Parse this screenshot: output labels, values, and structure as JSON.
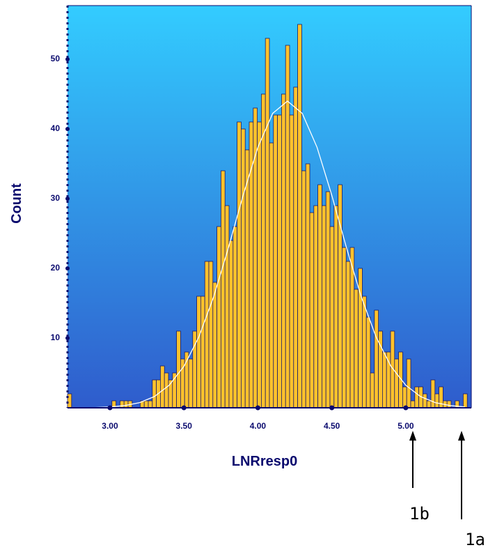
{
  "chart_data": {
    "type": "histogram",
    "x_label": "LNRresp0",
    "y_label": "Count",
    "color": "#ffc22c",
    "bins": [
      2.713,
      2.7403,
      2.7676,
      2.7949,
      2.8222,
      2.8495,
      2.8768,
      2.9041,
      2.9314,
      2.9587,
      2.986,
      3.0133,
      3.0406,
      3.0679,
      3.0952,
      3.1225,
      3.1498,
      3.1771,
      3.2044,
      3.2317,
      3.259,
      3.2863,
      3.3136,
      3.3409,
      3.3682,
      3.3955,
      3.4228,
      3.4501,
      3.4774,
      3.5047,
      3.532,
      3.5593,
      3.5866,
      3.6139,
      3.6412,
      3.6685,
      3.6958,
      3.7231,
      3.7504,
      3.7777,
      3.805,
      3.8323,
      3.8596,
      3.8869,
      3.9142,
      3.9415,
      3.9688,
      3.9961,
      4.0234,
      4.0507,
      4.078,
      4.1053,
      4.1326,
      4.1599,
      4.1872,
      4.2145,
      4.2418,
      4.2691,
      4.2964,
      4.3237,
      4.351,
      4.3783,
      4.4056,
      4.4329,
      4.4602,
      4.4875,
      4.5148,
      4.5421,
      4.5694,
      4.5967,
      4.624,
      4.6513,
      4.6786,
      4.7059,
      4.7332,
      4.7605,
      4.7878,
      4.8151,
      4.8424,
      4.8697,
      4.897,
      4.9243,
      4.9516,
      4.9789,
      5.0062,
      5.0335,
      5.0608,
      5.0881,
      5.1154,
      5.1427,
      5.17,
      5.1973,
      5.2246,
      5.2519,
      5.2792,
      5.3065,
      5.3338,
      5.3611,
      5.3884,
      5.4157,
      5.443
    ],
    "values": [
      2,
      0,
      0,
      0,
      0,
      0,
      0,
      0,
      0,
      0,
      0,
      1,
      0,
      1,
      1,
      1,
      0,
      0,
      1,
      1,
      1,
      4,
      4,
      6,
      5,
      4,
      5,
      11,
      7,
      8,
      7,
      11,
      16,
      16,
      21,
      21,
      18,
      26,
      34,
      29,
      24,
      26,
      41,
      40,
      37,
      41,
      43,
      41,
      45,
      53,
      38,
      42,
      42,
      45,
      52,
      42,
      46,
      55,
      34,
      35,
      28,
      29,
      32,
      29,
      31,
      26,
      29,
      32,
      23,
      21,
      23,
      17,
      20,
      16,
      13,
      5,
      14,
      11,
      8,
      8,
      11,
      7,
      8,
      3,
      7,
      1,
      3,
      3,
      2,
      1,
      4,
      2,
      3,
      1,
      1,
      0,
      1,
      0,
      2,
      0
    ],
    "fit_curve": {
      "color": "#ffffff",
      "x": [
        2.8,
        2.9,
        3.0,
        3.1,
        3.2,
        3.3,
        3.4,
        3.5,
        3.6,
        3.7,
        3.8,
        3.9,
        4.0,
        4.1,
        4.2,
        4.3,
        4.4,
        4.5,
        4.6,
        4.7,
        4.8,
        4.9,
        5.0,
        5.1,
        5.2,
        5.3,
        5.4
      ],
      "values": [
        0.01,
        0.04,
        0.12,
        0.32,
        0.74,
        1.61,
        3.23,
        5.95,
        10.12,
        15.86,
        22.9,
        30.47,
        37.37,
        42.24,
        44,
        42.24,
        37.37,
        30.47,
        22.9,
        15.86,
        10.12,
        5.95,
        3.23,
        1.61,
        0.74,
        0.32,
        0.12
      ]
    },
    "xlim": [
      2.713,
      5.443
    ],
    "ylim": [
      0,
      57.7
    ],
    "xticks": [
      {
        "value": 3,
        "label": "3.00"
      },
      {
        "value": 3.5,
        "label": "3.50"
      },
      {
        "value": 4,
        "label": "4.00"
      },
      {
        "value": 4.5,
        "label": "4.50"
      },
      {
        "value": 5,
        "label": "5.00"
      }
    ],
    "yticks": [
      10,
      20,
      30,
      40,
      50
    ],
    "annotations": [
      "1b",
      "1a"
    ]
  }
}
